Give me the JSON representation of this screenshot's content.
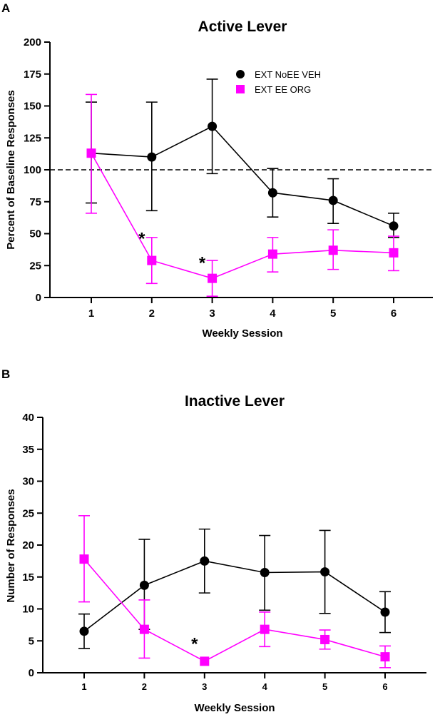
{
  "chart_data": [
    {
      "panel": "A",
      "type": "line",
      "title": "Active Lever",
      "xlabel": "Weekly Session",
      "ylabel": "Percent of Baseline Responses",
      "x": [
        1,
        2,
        3,
        4,
        5,
        6
      ],
      "x_tick_labels": [
        "1",
        "2",
        "3",
        "4",
        "5",
        "6"
      ],
      "ylim": [
        0,
        200
      ],
      "y_ticks": [
        0,
        25,
        50,
        75,
        100,
        125,
        150,
        175,
        200
      ],
      "y_tick_labels": [
        "0",
        "25",
        "50",
        "75",
        "100",
        "125",
        "150",
        "175",
        "200"
      ],
      "reference_line": 100,
      "legend": {
        "placement": "top-right"
      },
      "series": [
        {
          "name": "EXT NoEE VEH",
          "color": "#000000",
          "marker": "circle",
          "values": [
            113,
            110,
            134,
            82,
            76,
            56
          ],
          "error_low": [
            74,
            68,
            97,
            63,
            58,
            47
          ],
          "error_high": [
            153,
            153,
            171,
            101,
            93,
            66
          ]
        },
        {
          "name": "EXT EE ORG",
          "color": "#ff00ff",
          "marker": "square",
          "values": [
            113,
            29,
            15,
            34,
            37,
            35
          ],
          "error_low": [
            66,
            11,
            1,
            20,
            22,
            21
          ],
          "error_high": [
            159,
            47,
            29,
            47,
            53,
            48
          ]
        }
      ],
      "annotations": [
        {
          "text": "*",
          "x": 2,
          "y": 46
        },
        {
          "text": "*",
          "x": 3,
          "y": 27
        }
      ]
    },
    {
      "panel": "B",
      "type": "line",
      "title": "Inactive Lever",
      "xlabel": "Weekly Session",
      "ylabel": "Number of Responses",
      "x": [
        1,
        2,
        3,
        4,
        5,
        6
      ],
      "x_tick_labels": [
        "1",
        "2",
        "3",
        "4",
        "5",
        "6"
      ],
      "ylim": [
        0,
        40
      ],
      "y_ticks": [
        0,
        5,
        10,
        15,
        20,
        25,
        30,
        35,
        40
      ],
      "y_tick_labels": [
        "0",
        "5",
        "10",
        "15",
        "20",
        "25",
        "30",
        "35",
        "40"
      ],
      "series": [
        {
          "name": "EXT NoEE VEH",
          "color": "#000000",
          "marker": "circle",
          "values": [
            6.5,
            13.7,
            17.5,
            15.7,
            15.8,
            9.5
          ],
          "error_low": [
            3.8,
            6.8,
            12.5,
            9.8,
            9.3,
            6.3
          ],
          "error_high": [
            9.2,
            20.9,
            22.5,
            21.5,
            22.3,
            12.7
          ]
        },
        {
          "name": "EXT EE ORG",
          "color": "#ff00ff",
          "marker": "square",
          "values": [
            17.8,
            6.8,
            1.8,
            6.8,
            5.2,
            2.5
          ],
          "error_low": [
            11.1,
            2.3,
            1.8,
            4.1,
            3.7,
            0.8
          ],
          "error_high": [
            24.6,
            11.4,
            1.8,
            9.5,
            6.7,
            4.2
          ]
        }
      ],
      "annotations": [
        {
          "text": "*",
          "x": 3,
          "y": 4.5
        }
      ]
    }
  ]
}
